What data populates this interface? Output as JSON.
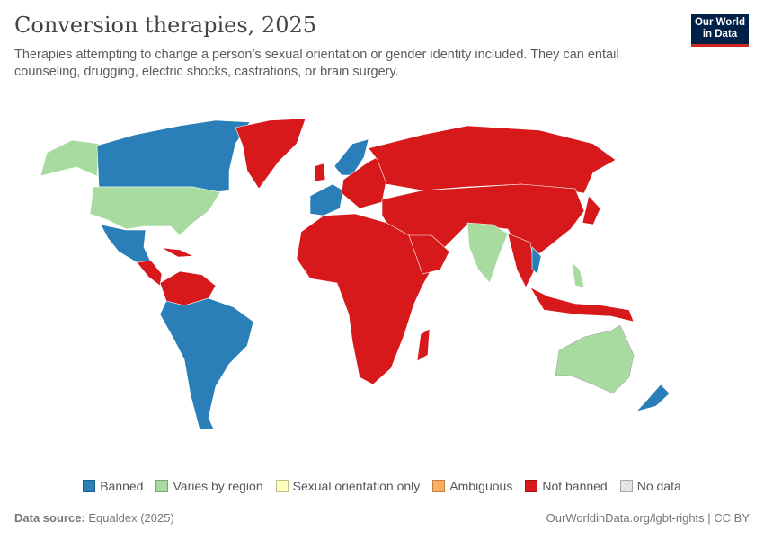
{
  "header": {
    "title": "Conversion therapies, 2025",
    "subtitle": "Therapies attempting to change a person’s sexual orientation or gender identity included. They can entail counseling, drugging, electric shocks, castrations, or brain surgery.",
    "logo_text": "Our World in Data"
  },
  "legend": [
    {
      "label": "Banned",
      "color": "#2a7fb8"
    },
    {
      "label": "Varies by region",
      "color": "#a8dba0"
    },
    {
      "label": "Sexual orientation only",
      "color": "#ffffbf"
    },
    {
      "label": "Ambiguous",
      "color": "#fdae61"
    },
    {
      "label": "Not banned",
      "color": "#d7191c"
    },
    {
      "label": "No data",
      "color": "#eeeeee"
    }
  ],
  "footer": {
    "source_label": "Data source:",
    "source": "Equaldex (2025)",
    "url": "OurWorldinData.org/lgbt-rights | CC BY"
  }
}
